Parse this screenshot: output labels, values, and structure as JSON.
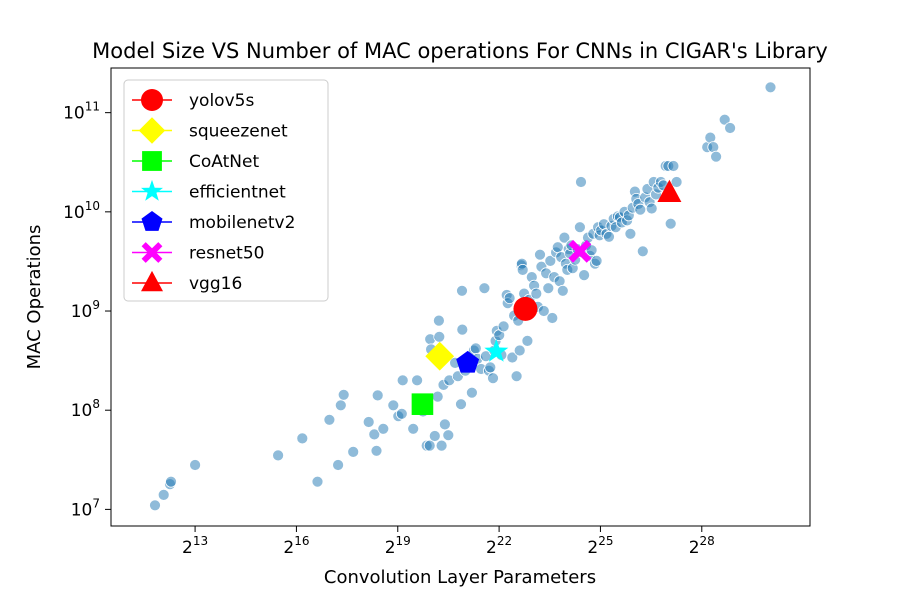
{
  "chart_data": {
    "type": "scatter",
    "title": "Model Size VS Number of MAC operations For CNNs in CIGAR's Library",
    "xlabel": "Convolution Layer Parameters",
    "ylabel": "MAC Operations",
    "xscale": "log2",
    "yscale": "log10",
    "xlim": [
      1459,
      2473000000
    ],
    "ylim": [
      6800000,
      282000000000
    ],
    "x_ticks": [
      {
        "value": 8192,
        "base": "2",
        "exp": "13"
      },
      {
        "value": 65536,
        "base": "2",
        "exp": "16"
      },
      {
        "value": 524288,
        "base": "2",
        "exp": "19"
      },
      {
        "value": 4194304,
        "base": "2",
        "exp": "22"
      },
      {
        "value": 33554432,
        "base": "2",
        "exp": "25"
      },
      {
        "value": 268435456,
        "base": "2",
        "exp": "28"
      }
    ],
    "y_ticks": [
      {
        "value": 10000000,
        "base": "10",
        "exp": "7"
      },
      {
        "value": 100000000,
        "base": "10",
        "exp": "8"
      },
      {
        "value": 1000000000,
        "base": "10",
        "exp": "9"
      },
      {
        "value": 10000000000,
        "base": "10",
        "exp": "10"
      },
      {
        "value": 100000000000,
        "base": "10",
        "exp": "11"
      }
    ],
    "grid": false,
    "legend_position": "top-left",
    "background_points_color": "#1f77b4",
    "background_points": [
      [
        3600,
        11000000
      ],
      [
        4300,
        14000000
      ],
      [
        4900,
        18000000
      ],
      [
        5000,
        19000000
      ],
      [
        8200,
        28000000
      ],
      [
        45000,
        35000000
      ],
      [
        74000,
        52000000
      ],
      [
        101000,
        19000000
      ],
      [
        129000,
        80000000
      ],
      [
        154000,
        28000000
      ],
      [
        163000,
        112000000
      ],
      [
        173000,
        143000000
      ],
      [
        210000,
        38000000
      ],
      [
        289000,
        76000000
      ],
      [
        324000,
        57000000
      ],
      [
        339000,
        39000000
      ],
      [
        347000,
        141000000
      ],
      [
        390000,
        65000000
      ],
      [
        478000,
        112000000
      ],
      [
        530000,
        87000000
      ],
      [
        570000,
        92000000
      ],
      [
        580000,
        200000000
      ],
      [
        720000,
        65000000
      ],
      [
        780000,
        200000000
      ],
      [
        880000,
        97000000
      ],
      [
        950000,
        44000000
      ],
      [
        1010000,
        44000000
      ],
      [
        1020000,
        520000000
      ],
      [
        1040000,
        410000000
      ],
      [
        1120000,
        55000000
      ],
      [
        1190000,
        137000000
      ],
      [
        1220000,
        800000000
      ],
      [
        1230000,
        550000000
      ],
      [
        1290000,
        44000000
      ],
      [
        1340000,
        180000000
      ],
      [
        1380000,
        72000000
      ],
      [
        1480000,
        56000000
      ],
      [
        1510000,
        200000000
      ],
      [
        1700000,
        300000000
      ],
      [
        1800000,
        220000000
      ],
      [
        1920000,
        115000000
      ],
      [
        1960000,
        1600000000
      ],
      [
        1970000,
        650000000
      ],
      [
        2100000,
        250000000
      ],
      [
        2250000,
        320000000
      ],
      [
        2400000,
        150000000
      ],
      [
        2500000,
        400000000
      ],
      [
        2600000,
        420000000
      ],
      [
        2700000,
        330000000
      ],
      [
        2900000,
        260000000
      ],
      [
        3100000,
        1700000000
      ],
      [
        3200000,
        350000000
      ],
      [
        3400000,
        250000000
      ],
      [
        3500000,
        270000000
      ],
      [
        3700000,
        210000000
      ],
      [
        3800000,
        400000000
      ],
      [
        3900000,
        500000000
      ],
      [
        4000000,
        630000000
      ],
      [
        4200000,
        570000000
      ],
      [
        4400000,
        360000000
      ],
      [
        4600000,
        700000000
      ],
      [
        4900000,
        1450000000
      ],
      [
        5000000,
        1200000000
      ],
      [
        5200000,
        1350000000
      ],
      [
        5500000,
        340000000
      ],
      [
        5700000,
        900000000
      ],
      [
        6000000,
        220000000
      ],
      [
        6200000,
        800000000
      ],
      [
        6400000,
        400000000
      ],
      [
        6600000,
        2900000000
      ],
      [
        6700000,
        3000000000
      ],
      [
        6800000,
        2600000000
      ],
      [
        7000000,
        1500000000
      ],
      [
        7500000,
        500000000
      ],
      [
        7800000,
        1300000000
      ],
      [
        8200000,
        2200000000
      ],
      [
        8600000,
        1800000000
      ],
      [
        9000000,
        1500000000
      ],
      [
        9300000,
        1100000000
      ],
      [
        9700000,
        3700000000
      ],
      [
        10000000,
        2800000000
      ],
      [
        10500000,
        1000000000
      ],
      [
        11000000,
        2400000000
      ],
      [
        11500000,
        1700000000
      ],
      [
        12000000,
        3200000000
      ],
      [
        12500000,
        850000000
      ],
      [
        13000000,
        2200000000
      ],
      [
        13500000,
        3900000000
      ],
      [
        14000000,
        4400000000
      ],
      [
        14500000,
        2000000000
      ],
      [
        15000000,
        3500000000
      ],
      [
        15500000,
        1600000000
      ],
      [
        16000000,
        5500000000
      ],
      [
        16500000,
        3000000000
      ],
      [
        17000000,
        2600000000
      ],
      [
        17500000,
        4200000000
      ],
      [
        18000000,
        3800000000
      ],
      [
        18500000,
        4600000000
      ],
      [
        19000000,
        2700000000
      ],
      [
        20000000,
        3300000000
      ],
      [
        21000000,
        4200000000
      ],
      [
        22000000,
        7000000000
      ],
      [
        22500000,
        20000000000
      ],
      [
        23000000,
        3900000000
      ],
      [
        24000000,
        2300000000
      ],
      [
        25000000,
        4600000000
      ],
      [
        26000000,
        5500000000
      ],
      [
        27000000,
        3600000000
      ],
      [
        28000000,
        4100000000
      ],
      [
        29000000,
        6000000000
      ],
      [
        30000000,
        3000000000
      ],
      [
        31000000,
        3200000000
      ],
      [
        32000000,
        7000000000
      ],
      [
        33000000,
        5800000000
      ],
      [
        34000000,
        6500000000
      ],
      [
        36000000,
        7500000000
      ],
      [
        38000000,
        6000000000
      ],
      [
        40000000,
        5600000000
      ],
      [
        42000000,
        7200000000
      ],
      [
        44000000,
        8500000000
      ],
      [
        46000000,
        7000000000
      ],
      [
        48000000,
        9000000000
      ],
      [
        50000000,
        8800000000
      ],
      [
        52000000,
        7800000000
      ],
      [
        55000000,
        10000000000
      ],
      [
        58000000,
        8200000000
      ],
      [
        60000000,
        9200000000
      ],
      [
        62000000,
        6000000000
      ],
      [
        65000000,
        11000000000
      ],
      [
        68000000,
        16000000000
      ],
      [
        70000000,
        13500000000
      ],
      [
        73000000,
        12000000000
      ],
      [
        76000000,
        10500000000
      ],
      [
        80000000,
        4000000000
      ],
      [
        84000000,
        14000000000
      ],
      [
        88000000,
        17000000000
      ],
      [
        92000000,
        12500000000
      ],
      [
        96000000,
        10800000000
      ],
      [
        100000000,
        20000000000
      ],
      [
        105000000,
        15000000000
      ],
      [
        110000000,
        17500000000
      ],
      [
        116000000,
        20000000000
      ],
      [
        122000000,
        18500000000
      ],
      [
        128000000,
        29000000000
      ],
      [
        135000000,
        29000000000
      ],
      [
        142000000,
        7600000000
      ],
      [
        150000000,
        29000000000
      ],
      [
        160000000,
        20000000000
      ],
      [
        300000000,
        45000000000
      ],
      [
        320000000,
        56000000000
      ],
      [
        340000000,
        45000000000
      ],
      [
        360000000,
        36000000000
      ],
      [
        430000000,
        85000000000
      ],
      [
        480000000,
        70000000000
      ],
      [
        1100000000,
        180000000000
      ]
    ],
    "series": [
      {
        "name": "yolov5s",
        "x": 7200000,
        "y": 1050000000,
        "marker": "circle",
        "color": "#ff0000"
      },
      {
        "name": "squeezenet",
        "x": 1240000,
        "y": 350000000,
        "marker": "diamond",
        "color": "#ffff00"
      },
      {
        "name": "CoAtNet",
        "x": 870000,
        "y": 115000000,
        "marker": "square",
        "color": "#00ff00"
      },
      {
        "name": "efficientnet",
        "x": 3960000,
        "y": 390000000,
        "marker": "star",
        "color": "#00ffff"
      },
      {
        "name": "mobilenetv2",
        "x": 2200000,
        "y": 300000000,
        "marker": "pentagon",
        "color": "#0000ff"
      },
      {
        "name": "resnet50",
        "x": 22000000,
        "y": 4000000000,
        "marker": "cross",
        "color": "#ff00ff"
      },
      {
        "name": "vgg16",
        "x": 138000000,
        "y": 15500000000,
        "marker": "triangle",
        "color": "#ff0000"
      }
    ]
  }
}
